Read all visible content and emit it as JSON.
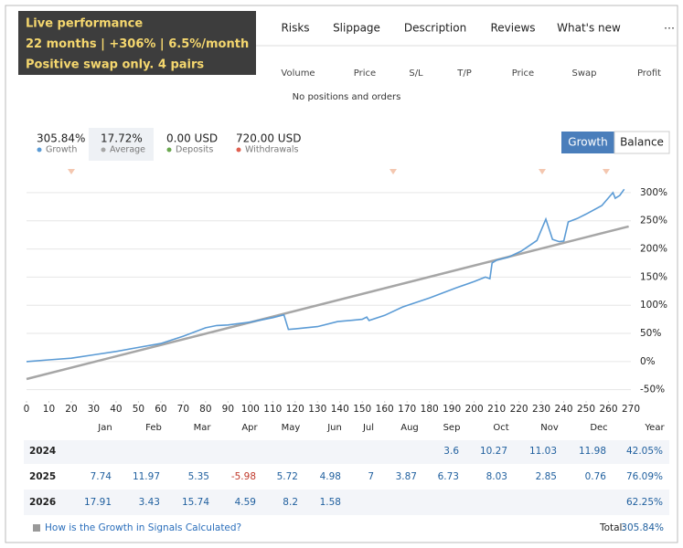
{
  "banner": {
    "lines": [
      "Live performance",
      "22 months | +306% | 6.5%/month",
      "Positive swap only. 4 pairs"
    ]
  },
  "tabs": [
    "Risks",
    "Slippage",
    "Description",
    "Reviews",
    "What's new",
    "⋯"
  ],
  "positions": {
    "columns": [
      "Volume",
      "Price",
      "S/L",
      "T/P",
      "Price",
      "Swap",
      "Profit"
    ],
    "empty_message": "No positions and orders"
  },
  "stats": [
    {
      "value": "305.84%",
      "label": "Growth",
      "color": "#5b9bd5"
    },
    {
      "value": "17.72%",
      "label": "Average",
      "color": "#a6a6a6"
    },
    {
      "value": "0.00 USD",
      "label": "Deposits",
      "color": "#6aa84f"
    },
    {
      "value": "720.00 USD",
      "label": "Withdrawals",
      "color": "#e06050"
    }
  ],
  "chart_toggle": [
    "Growth",
    "Balance"
  ],
  "chart_data": {
    "type": "line",
    "series": [
      {
        "name": "Growth",
        "color": "#5b9bd5",
        "x": [
          0,
          10,
          20,
          30,
          40,
          50,
          60,
          70,
          80,
          85,
          90,
          100,
          110,
          115,
          117,
          120,
          130,
          139,
          150,
          152,
          153,
          160,
          168,
          180,
          192,
          200,
          205,
          207,
          208,
          210,
          215,
          221,
          228,
          232,
          235,
          238,
          240,
          242,
          246,
          250,
          257,
          262,
          263,
          265,
          267
        ],
        "values": [
          0,
          3,
          6,
          12,
          18,
          25,
          32,
          45,
          60,
          64,
          65,
          70,
          78,
          83,
          57,
          58,
          62,
          71,
          75,
          79,
          73,
          82,
          97,
          113,
          131,
          142,
          150,
          147,
          175,
          180,
          185,
          196,
          215,
          253,
          217,
          213,
          214,
          248,
          254,
          262,
          277,
          300,
          290,
          295,
          306
        ]
      },
      {
        "name": "Average",
        "color": "#a6a6a6",
        "x": [
          0,
          269
        ],
        "values": [
          -31,
          240
        ]
      }
    ],
    "xlim": [
      0,
      270
    ],
    "xticks": [
      0,
      10,
      20,
      30,
      40,
      50,
      60,
      70,
      80,
      90,
      100,
      110,
      120,
      130,
      140,
      150,
      160,
      170,
      180,
      190,
      200,
      210,
      220,
      230,
      240,
      250,
      260,
      270
    ],
    "ylim": [
      -70,
      320
    ],
    "yticks": [
      {
        "value": -50,
        "label": "-50%"
      },
      {
        "value": 0,
        "label": "0%"
      },
      {
        "value": 50,
        "label": "50%"
      },
      {
        "value": 100,
        "label": "100%"
      },
      {
        "value": 150,
        "label": "150%"
      },
      {
        "value": 200,
        "label": "200%"
      },
      {
        "value": 250,
        "label": "250%"
      },
      {
        "value": 300,
        "label": "300%"
      }
    ],
    "grid": true
  },
  "monthly": {
    "columns": [
      "Jan",
      "Feb",
      "Mar",
      "Apr",
      "May",
      "Jun",
      "Jul",
      "Aug",
      "Sep",
      "Oct",
      "Nov",
      "Dec",
      "Year"
    ],
    "rows": [
      {
        "year": "2024",
        "cells": [
          null,
          null,
          null,
          null,
          null,
          null,
          null,
          null,
          "3.6",
          "10.27",
          "11.03",
          "11.98",
          "42.05%"
        ]
      },
      {
        "year": "2025",
        "cells": [
          "7.74",
          "11.97",
          "5.35",
          "-5.98",
          "5.72",
          "4.98",
          "7",
          "3.87",
          "6.73",
          "8.03",
          "2.85",
          "0.76",
          "76.09%"
        ]
      },
      {
        "year": "2026",
        "cells": [
          "17.91",
          "3.43",
          "15.74",
          "4.59",
          "8.2",
          "1.58",
          null,
          null,
          null,
          null,
          null,
          null,
          "62.25%"
        ]
      }
    ]
  },
  "footer": {
    "link": "How is the Growth in Signals Calculated?",
    "total_label": "Total:",
    "total_value": "305.84%"
  }
}
